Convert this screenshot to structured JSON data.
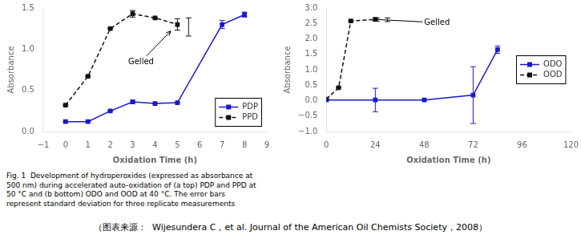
{
  "chart_data": [
    {
      "type": "line",
      "xlabel": "Oxidation Time (h)",
      "ylabel": "Absorbance",
      "series": [
        {
          "name": "PDP",
          "color": "#1a1acd",
          "line_style": "solid",
          "marker": "square",
          "x": [
            0,
            1,
            2,
            3,
            4,
            5,
            7,
            8
          ],
          "values": [
            0.12,
            0.12,
            0.25,
            0.36,
            0.34,
            0.35,
            1.3,
            1.42
          ],
          "errors": [
            0.0,
            0.0,
            0.0,
            0.02,
            0.0,
            0.0,
            0.05,
            0.03
          ]
        },
        {
          "name": "PPD",
          "color": "#111111",
          "line_style": "dashed",
          "marker": "square",
          "x": [
            0,
            1,
            2,
            3,
            4,
            5
          ],
          "values": [
            0.32,
            0.67,
            1.25,
            1.43,
            1.38,
            1.3
          ],
          "errors": [
            0.0,
            0.0,
            0.0,
            0.04,
            0.0,
            0.07
          ]
        }
      ],
      "error_bars": [
        {
          "x": 5.5,
          "y": 1.27,
          "error": 0.11,
          "color": "#111111"
        }
      ],
      "annotations": [
        {
          "text": "Gelled",
          "x": 2.8,
          "y": 0.82,
          "arrow_x": 4.7,
          "arrow_y": 1.22
        }
      ],
      "xlim": [
        -1,
        9
      ],
      "xticks": [
        {
          "value": -1,
          "label": "−1"
        },
        0,
        1,
        2,
        3,
        4,
        5,
        6,
        7,
        8,
        9
      ],
      "ylim": [
        0.0,
        1.5
      ],
      "yticks": [
        {
          "value": 0.0,
          "label": "0.0"
        },
        0.5,
        {
          "value": 1.0,
          "label": "1.0"
        },
        1.5
      ],
      "grid": false,
      "legend": "lower right"
    },
    {
      "type": "line",
      "xlabel": "Oxidation Time (h)",
      "ylabel": "Absorbance",
      "series": [
        {
          "name": "ODO",
          "color": "#1a1acd",
          "line_style": "solid",
          "marker": "square",
          "x": [
            0,
            24,
            48,
            72,
            84
          ],
          "values": [
            0.02,
            0.02,
            0.02,
            0.18,
            1.65
          ],
          "errors": [
            0.0,
            0.38,
            0.0,
            0.92,
            0.12
          ]
        },
        {
          "name": "OOD",
          "color": "#111111",
          "line_style": "dashed",
          "marker": "square",
          "x": [
            0,
            6,
            12,
            24
          ],
          "values": [
            0.05,
            0.42,
            2.58,
            2.63
          ],
          "errors": [
            0.0,
            0.0,
            0.0,
            0.05
          ]
        }
      ],
      "error_bars": [
        {
          "x": 30,
          "y": 2.62,
          "error": 0.06,
          "color": "#111111"
        }
      ],
      "annotations": [
        {
          "text": "Gelled",
          "x": 48,
          "y": 2.45,
          "arrow_x": 24,
          "arrow_y": 2.63
        }
      ],
      "xlim": [
        0,
        120
      ],
      "xticks": [
        0,
        24,
        48,
        72,
        96,
        120
      ],
      "ylim": [
        -1.0,
        3.0
      ],
      "yticks": [
        {
          "value": -1.0,
          "label": "−1.0"
        },
        {
          "value": -0.5,
          "label": "−0.5"
        },
        {
          "value": 0.0,
          "label": "0.0"
        },
        0.5,
        {
          "value": 1.0,
          "label": "1.0"
        },
        1.5,
        {
          "value": 2.0,
          "label": "2.0"
        },
        2.5,
        {
          "value": 3.0,
          "label": "3.0"
        }
      ],
      "grid": false,
      "legend": "center right"
    }
  ],
  "caption": "Fig. 1  Development of hydroperoxides (expressed as absorbance at\n500 nm) during accelerated auto-oxidation of (a top) PDP and PPD at\n50 °C and (b bottom) ODO and OOD at 40 °C. The error bars\nrepresent standard deviation for three replicate measurements",
  "source": "（图表来源：  Wijesundera C，et al. Journal of the American Oil Chemists Society，2008）"
}
